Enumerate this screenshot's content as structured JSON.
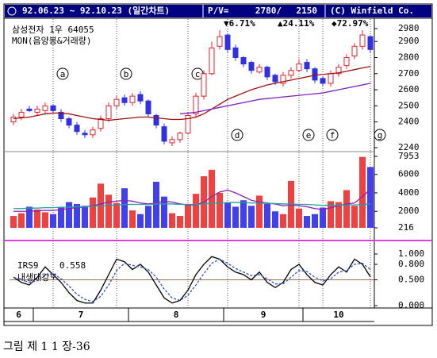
{
  "header": {
    "period": "92.06.23 ~ 92.10.23 (일간차트)",
    "pv_label": "P/V=",
    "p": "2780/",
    "v": "2150",
    "copyright": "(C) Winfield Co."
  },
  "caption": "그림 제 1 1 장-36",
  "chart_data": [
    {
      "type": "candlestick",
      "title": "삼성전자 1우 64055",
      "subtitle": "MON(음양봉&거래량)",
      "annotations": [
        "▼6.71%",
        "▲24.11%",
        "◆72.97%"
      ],
      "markers": [
        {
          "label": "a",
          "x": 5,
          "position": "top"
        },
        {
          "label": "b",
          "x": 13,
          "position": "top"
        },
        {
          "label": "c",
          "x": 22,
          "position": "top"
        },
        {
          "label": "d",
          "x": 27,
          "position": "bottom"
        },
        {
          "label": "e",
          "x": 36,
          "position": "bottom"
        },
        {
          "label": "f",
          "x": 39,
          "position": "bottom"
        },
        {
          "label": "g",
          "x": 45,
          "position": "bottom"
        }
      ],
      "xticks": [
        {
          "value": 0,
          "label": "6"
        },
        {
          "value": 3,
          "label": "7"
        },
        {
          "value": 15,
          "label": "8"
        },
        {
          "value": 27,
          "label": "9"
        },
        {
          "value": 37,
          "label": "10"
        }
      ],
      "xlim": [
        0,
        46
      ],
      "open": [
        2400,
        2430,
        2480,
        2460,
        2470,
        2500,
        2460,
        2420,
        2380,
        2330,
        2320,
        2360,
        2420,
        2500,
        2550,
        2520,
        2570,
        2530,
        2440,
        2370,
        2270,
        2290,
        2330,
        2450,
        2560,
        2700,
        2870,
        2940,
        2860,
        2800,
        2770,
        2710,
        2740,
        2690,
        2640,
        2690,
        2720,
        2770,
        2730,
        2670,
        2640,
        2700,
        2750,
        2810,
        2870,
        2930
      ],
      "high": [
        2450,
        2480,
        2500,
        2500,
        2520,
        2510,
        2480,
        2430,
        2400,
        2350,
        2370,
        2440,
        2520,
        2560,
        2570,
        2580,
        2590,
        2540,
        2450,
        2390,
        2310,
        2340,
        2460,
        2580,
        2720,
        2900,
        2970,
        2950,
        2880,
        2810,
        2780,
        2760,
        2750,
        2700,
        2710,
        2740,
        2790,
        2790,
        2740,
        2680,
        2720,
        2760,
        2820,
        2890,
        2970,
        2940
      ],
      "low": [
        2380,
        2410,
        2460,
        2440,
        2450,
        2460,
        2400,
        2360,
        2320,
        2300,
        2300,
        2340,
        2400,
        2480,
        2500,
        2500,
        2510,
        2430,
        2360,
        2260,
        2250,
        2270,
        2320,
        2430,
        2540,
        2690,
        2850,
        2830,
        2780,
        2740,
        2700,
        2700,
        2660,
        2630,
        2620,
        2670,
        2710,
        2710,
        2640,
        2620,
        2620,
        2680,
        2730,
        2790,
        2850,
        2830
      ],
      "close": [
        2430,
        2460,
        2470,
        2480,
        2500,
        2470,
        2420,
        2380,
        2340,
        2320,
        2350,
        2420,
        2500,
        2540,
        2520,
        2560,
        2530,
        2450,
        2380,
        2280,
        2290,
        2330,
        2440,
        2560,
        2700,
        2860,
        2930,
        2850,
        2800,
        2760,
        2720,
        2740,
        2680,
        2650,
        2690,
        2720,
        2760,
        2730,
        2660,
        2640,
        2700,
        2740,
        2800,
        2870,
        2940,
        2850
      ],
      "up_color": "#e8202a",
      "down_color": "#3030e0",
      "series": [
        {
          "color": "#a01010",
          "values": [
            2420,
            2425,
            2430,
            2440,
            2450,
            2455,
            2455,
            2450,
            2440,
            2430,
            2420,
            2415,
            2410,
            2415,
            2420,
            2425,
            2430,
            2430,
            2425,
            2420,
            2415,
            2415,
            2420,
            2430,
            2450,
            2480,
            2510,
            2540,
            2560,
            2580,
            2600,
            2615,
            2630,
            2640,
            2650,
            2660,
            2670,
            2680,
            2690,
            2695,
            2700,
            2705,
            2715,
            2725,
            2735,
            2745
          ]
        },
        {
          "color": "#8020c0",
          "values": [
            null,
            null,
            null,
            null,
            null,
            null,
            null,
            null,
            null,
            null,
            null,
            null,
            null,
            null,
            null,
            null,
            null,
            null,
            null,
            null,
            null,
            2450,
            2455,
            2460,
            2470,
            2480,
            2490,
            2500,
            2510,
            2520,
            2530,
            2540,
            2545,
            2550,
            2555,
            2560,
            2565,
            2570,
            2575,
            2580,
            2590,
            2600,
            2610,
            2620,
            2630,
            2640
          ]
        }
      ],
      "ylim": [
        2240,
        2980
      ],
      "yticks": [
        2240,
        2400,
        2500,
        2600,
        2700,
        2800,
        2900,
        2980
      ]
    },
    {
      "type": "bar",
      "up_color": "#f04040",
      "down_color": "#4040f0",
      "values": [
        1500,
        1800,
        2500,
        2200,
        1900,
        1700,
        2400,
        3000,
        2800,
        2600,
        3500,
        5000,
        3800,
        2900,
        4500,
        2100,
        1700,
        2600,
        5200,
        3600,
        1800,
        1500,
        2800,
        3900,
        5800,
        6500,
        4000,
        2900,
        2500,
        3200,
        2600,
        3700,
        2800,
        2000,
        1700,
        5300,
        2300,
        1500,
        1700,
        2400,
        3100,
        3000,
        4300,
        2600,
        7900,
        6800
      ],
      "series": [
        {
          "color": "#9020b0",
          "values": [
            2000,
            2000,
            2000,
            2050,
            2100,
            2100,
            2200,
            2300,
            2400,
            2500,
            2600,
            2800,
            3000,
            3100,
            3200,
            3100,
            2900,
            2800,
            2900,
            3100,
            3000,
            2800,
            2700,
            2700,
            3000,
            3600,
            4100,
            4300,
            4000,
            3600,
            3200,
            3000,
            2900,
            2800,
            2600,
            2700,
            2600,
            2500,
            2300,
            2200,
            2400,
            2600,
            2800,
            2900,
            3600,
            4400
          ]
        },
        {
          "color": "#20a0a0",
          "values": [
            2300,
            2300,
            2350,
            2350,
            2400,
            2400,
            2450,
            2450,
            2500,
            2500,
            2550,
            2600,
            2650,
            2700,
            2750,
            2750,
            2750,
            2750,
            2800,
            2800,
            2800,
            2750,
            2750,
            2750,
            2800,
            2850,
            2900,
            2950,
            2950,
            2950,
            2900,
            2900,
            2850,
            2850,
            2800,
            2800,
            2750,
            2750,
            2700,
            2650,
            2650,
            2650,
            2700,
            2700,
            2750,
            2800
          ]
        }
      ],
      "ylim": [
        216,
        7953
      ],
      "yticks": [
        216,
        2000,
        4000,
        6000,
        7953
      ]
    },
    {
      "type": "line",
      "title": "IRS9",
      "current_value": 0.558,
      "subtitle": "내생대강도",
      "reference_line": 0.5,
      "series": [
        {
          "color": "#000000",
          "values": [
            0.55,
            0.45,
            0.4,
            0.55,
            0.75,
            0.6,
            0.45,
            0.25,
            0.1,
            0.05,
            0.05,
            0.3,
            0.6,
            0.9,
            0.85,
            0.7,
            0.8,
            0.65,
            0.4,
            0.15,
            0.05,
            0.1,
            0.3,
            0.6,
            0.8,
            0.95,
            0.9,
            0.75,
            0.65,
            0.6,
            0.5,
            0.65,
            0.45,
            0.35,
            0.45,
            0.7,
            0.8,
            0.6,
            0.45,
            0.4,
            0.6,
            0.75,
            0.65,
            0.9,
            0.8,
            0.558
          ]
        },
        {
          "color": "#3050d0",
          "dashed": true,
          "values": [
            0.55,
            0.5,
            0.45,
            0.48,
            0.6,
            0.62,
            0.52,
            0.38,
            0.22,
            0.12,
            0.08,
            0.18,
            0.4,
            0.68,
            0.82,
            0.78,
            0.75,
            0.7,
            0.55,
            0.32,
            0.15,
            0.1,
            0.2,
            0.4,
            0.62,
            0.82,
            0.9,
            0.82,
            0.72,
            0.65,
            0.58,
            0.6,
            0.52,
            0.42,
            0.42,
            0.55,
            0.68,
            0.66,
            0.55,
            0.48,
            0.52,
            0.65,
            0.68,
            0.8,
            0.82,
            0.7
          ]
        }
      ],
      "ylim": [
        0,
        1
      ],
      "yticks": [
        {
          "value": 0,
          "label": "0.000"
        },
        {
          "value": 0.5,
          "label": "0.500"
        },
        {
          "value": 0.8,
          "label": "0.800"
        },
        {
          "value": 1,
          "label": "1.000"
        }
      ]
    }
  ]
}
